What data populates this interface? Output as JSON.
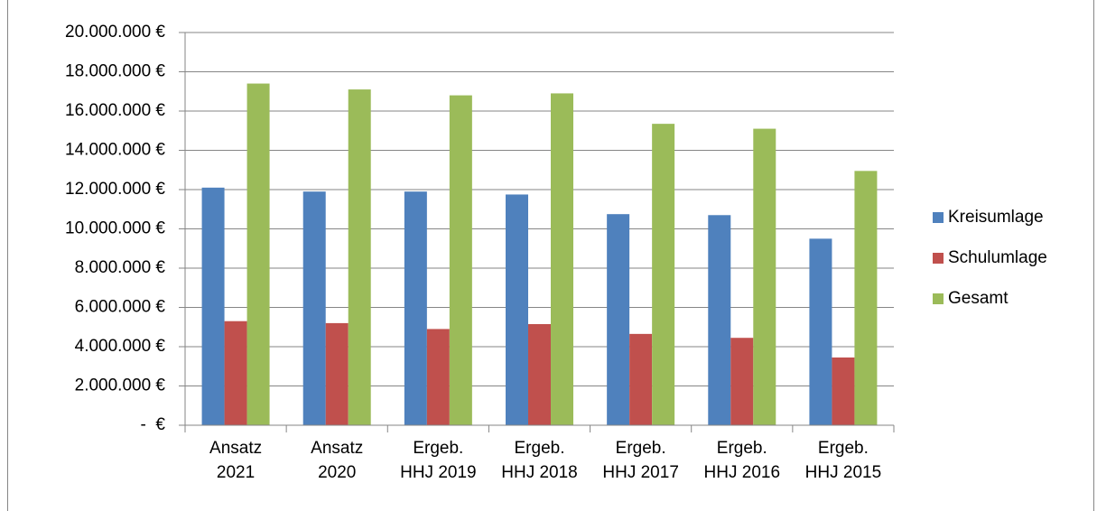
{
  "chart_data": {
    "type": "bar",
    "categories": [
      "Ansatz\n2021",
      "Ansatz\n2020",
      "Ergeb.\nHHJ 2019",
      "Ergeb.\nHHJ 2018",
      "Ergeb.\nHHJ 2017",
      "Ergeb.\nHHJ 2016",
      "Ergeb.\nHHJ 2015"
    ],
    "series": [
      {
        "name": "Kreisumlage",
        "color": "#4f81bd",
        "values": [
          12100000,
          11900000,
          11900000,
          11750000,
          10750000,
          10700000,
          9500000
        ]
      },
      {
        "name": "Schulumlage",
        "color": "#c0504d",
        "values": [
          5300000,
          5200000,
          4900000,
          5150000,
          4650000,
          4450000,
          3450000
        ]
      },
      {
        "name": "Gesamt",
        "color": "#9bbb59",
        "values": [
          17400000,
          17100000,
          16800000,
          16900000,
          15350000,
          15100000,
          12950000
        ]
      }
    ],
    "ylim": [
      0,
      20000000
    ],
    "yticks": [
      {
        "value": 0,
        "label": "-  €"
      },
      {
        "value": 2000000,
        "label": "2.000.000 €"
      },
      {
        "value": 4000000,
        "label": "4.000.000 €"
      },
      {
        "value": 6000000,
        "label": "6.000.000 €"
      },
      {
        "value": 8000000,
        "label": "8.000.000 €"
      },
      {
        "value": 10000000,
        "label": "10.000.000 €"
      },
      {
        "value": 12000000,
        "label": "12.000.000 €"
      },
      {
        "value": 14000000,
        "label": "14.000.000 €"
      },
      {
        "value": 16000000,
        "label": "16.000.000 €"
      },
      {
        "value": 18000000,
        "label": "18.000.000 €"
      },
      {
        "value": 20000000,
        "label": "20.000.000 €"
      }
    ],
    "grid": true,
    "legend": "right"
  }
}
